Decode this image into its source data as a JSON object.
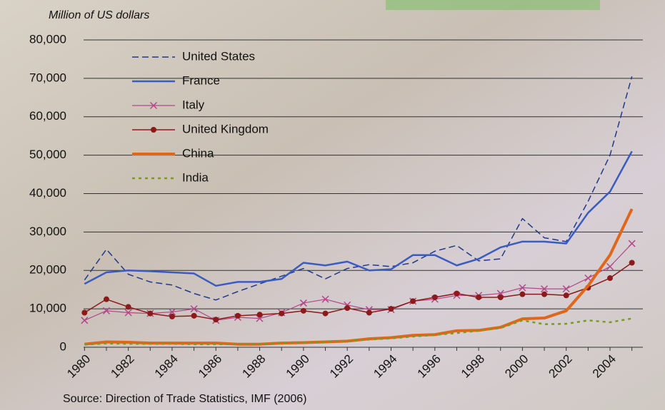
{
  "chart_data": {
    "type": "line",
    "y_label": "Million of US dollars",
    "source": "Source: Direction of Trade Statistics, IMF (2006)",
    "categories": [
      "1980",
      null,
      "1982",
      null,
      "1984",
      null,
      "1986",
      null,
      "1988",
      null,
      "1990",
      null,
      "1992",
      null,
      "1994",
      null,
      "1996",
      null,
      "1998",
      null,
      "2000",
      null,
      "2002",
      null,
      "2004",
      null
    ],
    "ylim": [
      0,
      80000
    ],
    "yticks": [
      0,
      {
        "value": 10000,
        "label": "10,000"
      },
      {
        "value": 20000,
        "label": "20,000"
      },
      {
        "value": 30000,
        "label": "30,000"
      },
      {
        "value": 40000,
        "label": "40,000"
      },
      {
        "value": 50000,
        "label": "50,000"
      },
      {
        "value": 60000,
        "label": "60,000"
      },
      {
        "value": 70000,
        "label": "70,000"
      },
      {
        "value": 80000,
        "label": "80,000"
      }
    ],
    "grid": true,
    "legend": "top-left",
    "series": [
      {
        "name": "United States",
        "color": "#1f3a8a",
        "dash": "dashed",
        "width": 1.5,
        "values": [
          17500,
          25500,
          19000,
          17000,
          16200,
          14000,
          12300,
          14500,
          16500,
          18500,
          20500,
          17800,
          20500,
          21500,
          21000,
          22000,
          25000,
          26500,
          22500,
          23000,
          33500,
          28500,
          27500,
          38000,
          50000,
          70500
        ]
      },
      {
        "name": "France",
        "color": "#3a5bbf",
        "width": 2.5,
        "values": [
          16500,
          19500,
          20000,
          19800,
          19500,
          19200,
          16000,
          17000,
          17000,
          17800,
          22000,
          21300,
          22300,
          20000,
          20300,
          24000,
          24000,
          21300,
          23000,
          26000,
          27500,
          27500,
          27000,
          35000,
          40500,
          51000
        ]
      },
      {
        "name": "Italy",
        "color": "#b0488a",
        "marker": "x",
        "width": 1.2,
        "values": [
          7000,
          9500,
          9000,
          8800,
          9200,
          10000,
          7000,
          7800,
          7500,
          9000,
          11500,
          12500,
          11000,
          9800,
          9800,
          12000,
          12500,
          13500,
          13500,
          14000,
          15500,
          15200,
          15200,
          18000,
          21000,
          27000
        ]
      },
      {
        "name": "United Kingdom",
        "color": "#8b1a1a",
        "marker": "circle",
        "width": 1.5,
        "values": [
          9000,
          12500,
          10500,
          8800,
          8000,
          8200,
          7200,
          8200,
          8500,
          8800,
          9500,
          8800,
          10200,
          9000,
          10000,
          12000,
          13000,
          14000,
          13000,
          13000,
          13800,
          13800,
          13500,
          15500,
          18000,
          22000
        ]
      },
      {
        "name": "China",
        "color": "#e0661a",
        "width": 4,
        "values": [
          800,
          1400,
          1300,
          1100,
          1100,
          1100,
          1100,
          800,
          800,
          1100,
          1200,
          1400,
          1600,
          2200,
          2500,
          3100,
          3300,
          4300,
          4400,
          5200,
          7400,
          7600,
          9500,
          16000,
          24000,
          36000
        ]
      },
      {
        "name": "India",
        "color": "#7a9a20",
        "dash": "dotted",
        "width": 2.5,
        "values": [
          700,
          1000,
          900,
          900,
          900,
          800,
          800,
          800,
          900,
          1100,
          1300,
          1400,
          1600,
          2000,
          2300,
          2800,
          3200,
          3700,
          4300,
          5000,
          7000,
          6000,
          6100,
          7000,
          6500,
          7500
        ]
      }
    ]
  }
}
